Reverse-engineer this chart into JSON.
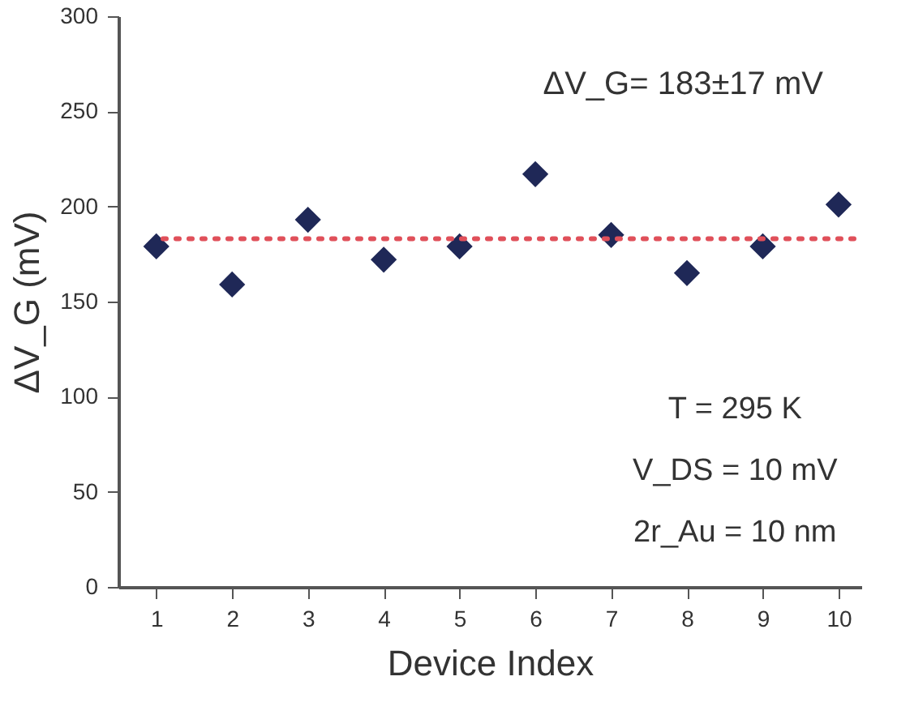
{
  "chart_data": {
    "type": "scatter",
    "xlabel": "Device Index",
    "ylabel": "ΔV_G (mV)",
    "x": [
      1,
      2,
      3,
      4,
      5,
      6,
      7,
      8,
      9,
      10
    ],
    "series": [
      {
        "color": "#1f2857",
        "values": [
          179,
          159,
          193,
          172,
          179,
          217,
          185,
          165,
          179,
          201
        ]
      }
    ],
    "marker": "diamond",
    "xlim": [
      0.5,
      10.3
    ],
    "xticks": [
      1,
      2,
      3,
      4,
      5,
      6,
      7,
      8,
      9,
      10
    ],
    "ylim": [
      0,
      300
    ],
    "yticks": [
      0,
      50,
      100,
      150,
      200,
      250,
      300
    ],
    "ref_lines": [
      {
        "axis": "y",
        "value": 183,
        "color": "#e0505a",
        "line_style": "dotted"
      }
    ],
    "annotations": [
      "ΔV_G= 183±17 mV",
      "T = 295 K",
      "V_DS = 10 mV",
      "2r_Au = 10 nm"
    ],
    "grid": false
  }
}
